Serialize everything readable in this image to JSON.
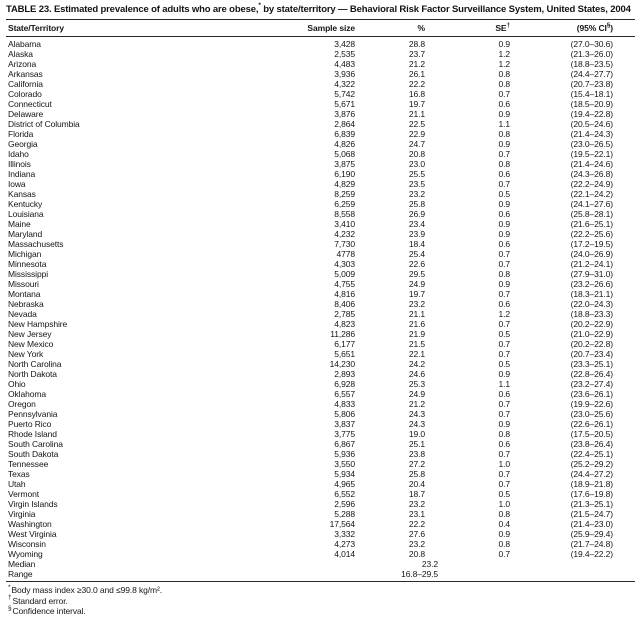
{
  "title": {
    "pre": "TABLE 23. Estimated prevalence of adults who are obese,",
    "marker": "*",
    "post": " by state/territory — Behavioral Risk Factor Surveillance System, United States, 2004"
  },
  "table": {
    "columns": {
      "state": "State/Territory",
      "sample": "Sample size",
      "pct": "%",
      "se_label": "SE",
      "se_marker": "†",
      "ci_prefix": "(95% CI",
      "ci_marker": "§",
      "ci_suffix": ")"
    },
    "rows": [
      {
        "state": "Alabama",
        "sample": "3,428",
        "pct": "28.8",
        "se": "0.9",
        "ci": "(27.0–30.6)"
      },
      {
        "state": "Alaska",
        "sample": "2,535",
        "pct": "23.7",
        "se": "1.2",
        "ci": "(21.3–26.0)"
      },
      {
        "state": "Arizona",
        "sample": "4,483",
        "pct": "21.2",
        "se": "1.2",
        "ci": "(18.8–23.5)"
      },
      {
        "state": "Arkansas",
        "sample": "3,936",
        "pct": "26.1",
        "se": "0.8",
        "ci": "(24.4–27.7)"
      },
      {
        "state": "California",
        "sample": "4,322",
        "pct": "22.2",
        "se": "0.8",
        "ci": "(20.7–23.8)"
      },
      {
        "state": "Colorado",
        "sample": "5,742",
        "pct": "16.8",
        "se": "0.7",
        "ci": "(15.4–18.1)"
      },
      {
        "state": "Connecticut",
        "sample": "5,671",
        "pct": "19.7",
        "se": "0.6",
        "ci": "(18.5–20.9)"
      },
      {
        "state": "Delaware",
        "sample": "3,876",
        "pct": "21.1",
        "se": "0.9",
        "ci": "(19.4–22.8)"
      },
      {
        "state": "District of Columbia",
        "sample": "2,864",
        "pct": "22.5",
        "se": "1.1",
        "ci": "(20.5–24.6)"
      },
      {
        "state": "Florida",
        "sample": "6,839",
        "pct": "22.9",
        "se": "0.8",
        "ci": "(21.4–24.3)"
      },
      {
        "state": "Georgia",
        "sample": "4,826",
        "pct": "24.7",
        "se": "0.9",
        "ci": "(23.0–26.5)"
      },
      {
        "state": "Idaho",
        "sample": "5,068",
        "pct": "20.8",
        "se": "0.7",
        "ci": "(19.5–22.1)"
      },
      {
        "state": "Illinois",
        "sample": "3,875",
        "pct": "23.0",
        "se": "0.8",
        "ci": "(21.4–24.6)"
      },
      {
        "state": "Indiana",
        "sample": "6,190",
        "pct": "25.5",
        "se": "0.6",
        "ci": "(24.3–26.8)"
      },
      {
        "state": "Iowa",
        "sample": "4,829",
        "pct": "23.5",
        "se": "0.7",
        "ci": "(22.2–24.9)"
      },
      {
        "state": "Kansas",
        "sample": "8,259",
        "pct": "23.2",
        "se": "0.5",
        "ci": "(22.1–24.2)"
      },
      {
        "state": "Kentucky",
        "sample": "6,259",
        "pct": "25.8",
        "se": "0.9",
        "ci": "(24.1–27.6)"
      },
      {
        "state": "Louisiana",
        "sample": "8,558",
        "pct": "26.9",
        "se": "0.6",
        "ci": "(25.8–28.1)"
      },
      {
        "state": "Maine",
        "sample": "3,410",
        "pct": "23.4",
        "se": "0.9",
        "ci": "(21.6–25.1)"
      },
      {
        "state": "Maryland",
        "sample": "4,232",
        "pct": "23.9",
        "se": "0.9",
        "ci": "(22.2–25.6)"
      },
      {
        "state": "Massachusetts",
        "sample": "7,730",
        "pct": "18.4",
        "se": "0.6",
        "ci": "(17.2–19.5)"
      },
      {
        "state": "Michigan",
        "sample": "4778",
        "pct": "25.4",
        "se": "0.7",
        "ci": "(24.0–26.9)"
      },
      {
        "state": "Minnesota",
        "sample": "4,303",
        "pct": "22.6",
        "se": "0.7",
        "ci": "(21.2–24.1)"
      },
      {
        "state": "Mississippi",
        "sample": "5,009",
        "pct": "29.5",
        "se": "0.8",
        "ci": "(27.9–31.0)"
      },
      {
        "state": "Missouri",
        "sample": "4,755",
        "pct": "24.9",
        "se": "0.9",
        "ci": "(23.2–26.6)"
      },
      {
        "state": "Montana",
        "sample": "4,816",
        "pct": "19.7",
        "se": "0.7",
        "ci": "(18.3–21.1)"
      },
      {
        "state": "Nebraska",
        "sample": "8,406",
        "pct": "23.2",
        "se": "0.6",
        "ci": "(22.0–24.3)"
      },
      {
        "state": "Nevada",
        "sample": "2,785",
        "pct": "21.1",
        "se": "1.2",
        "ci": "(18.8–23.3)"
      },
      {
        "state": "New Hampshire",
        "sample": "4,823",
        "pct": "21.6",
        "se": "0.7",
        "ci": "(20.2–22.9)"
      },
      {
        "state": "New Jersey",
        "sample": "11,286",
        "pct": "21.9",
        "se": "0.5",
        "ci": "(21.0–22.9)"
      },
      {
        "state": "New Mexico",
        "sample": "6,177",
        "pct": "21.5",
        "se": "0.7",
        "ci": "(20.2–22.8)"
      },
      {
        "state": "New York",
        "sample": "5,651",
        "pct": "22.1",
        "se": "0.7",
        "ci": "(20.7–23.4)"
      },
      {
        "state": "North Carolina",
        "sample": "14,230",
        "pct": "24.2",
        "se": "0.5",
        "ci": "(23.3–25.1)"
      },
      {
        "state": "North Dakota",
        "sample": "2,893",
        "pct": "24.6",
        "se": "0.9",
        "ci": "(22.8–26.4)"
      },
      {
        "state": "Ohio",
        "sample": "6,928",
        "pct": "25.3",
        "se": "1.1",
        "ci": "(23.2–27.4)"
      },
      {
        "state": "Oklahoma",
        "sample": "6,557",
        "pct": "24.9",
        "se": "0.6",
        "ci": "(23.6–26.1)"
      },
      {
        "state": "Oregon",
        "sample": "4,833",
        "pct": "21.2",
        "se": "0.7",
        "ci": "(19.9–22.6)"
      },
      {
        "state": "Pennsylvania",
        "sample": "5,806",
        "pct": "24.3",
        "se": "0.7",
        "ci": "(23.0–25.6)"
      },
      {
        "state": "Puerto Rico",
        "sample": "3,837",
        "pct": "24.3",
        "se": "0.9",
        "ci": "(22.6–26.1)"
      },
      {
        "state": "Rhode Island",
        "sample": "3,775",
        "pct": "19.0",
        "se": "0.8",
        "ci": "(17.5–20.5)"
      },
      {
        "state": "South Carolina",
        "sample": "6,867",
        "pct": "25.1",
        "se": "0.6",
        "ci": "(23.8–26.4)"
      },
      {
        "state": "South Dakota",
        "sample": "5,936",
        "pct": "23.8",
        "se": "0.7",
        "ci": "(22.4–25.1)"
      },
      {
        "state": "Tennessee",
        "sample": "3,550",
        "pct": "27.2",
        "se": "1.0",
        "ci": "(25.2–29.2)"
      },
      {
        "state": "Texas",
        "sample": "5,934",
        "pct": "25.8",
        "se": "0.7",
        "ci": "(24.4–27.2)"
      },
      {
        "state": "Utah",
        "sample": "4,965",
        "pct": "20.4",
        "se": "0.7",
        "ci": "(18.9–21.8)"
      },
      {
        "state": "Vermont",
        "sample": "6,552",
        "pct": "18.7",
        "se": "0.5",
        "ci": "(17.6–19.8)"
      },
      {
        "state": "Virgin Islands",
        "sample": "2,596",
        "pct": "23.2",
        "se": "1.0",
        "ci": "(21.3–25.1)"
      },
      {
        "state": "Virginia",
        "sample": "5,288",
        "pct": "23.1",
        "se": "0.8",
        "ci": "(21.5–24.7)"
      },
      {
        "state": "Washington",
        "sample": "17,564",
        "pct": "22.2",
        "se": "0.4",
        "ci": "(21.4–23.0)"
      },
      {
        "state": "West Virginia",
        "sample": "3,332",
        "pct": "27.6",
        "se": "0.9",
        "ci": "(25.9–29.4)"
      },
      {
        "state": "Wisconsin",
        "sample": "4,273",
        "pct": "23.2",
        "se": "0.8",
        "ci": "(21.7–24.8)"
      },
      {
        "state": "Wyoming",
        "sample": "4,014",
        "pct": "20.8",
        "se": "0.7",
        "ci": "(19.4–22.2)"
      },
      {
        "state": "Median",
        "sample": "",
        "pct": "23.2",
        "se": "",
        "ci": ""
      },
      {
        "state": "Range",
        "sample": "",
        "pct": "16.8–29.5",
        "se": "",
        "ci": ""
      }
    ]
  },
  "footnotes": [
    {
      "marker": "*",
      "text": "Body mass index ≥30.0 and ≤99.8 kg/m²."
    },
    {
      "marker": "†",
      "text": "Standard error."
    },
    {
      "marker": "§",
      "text": "Confidence interval."
    }
  ]
}
